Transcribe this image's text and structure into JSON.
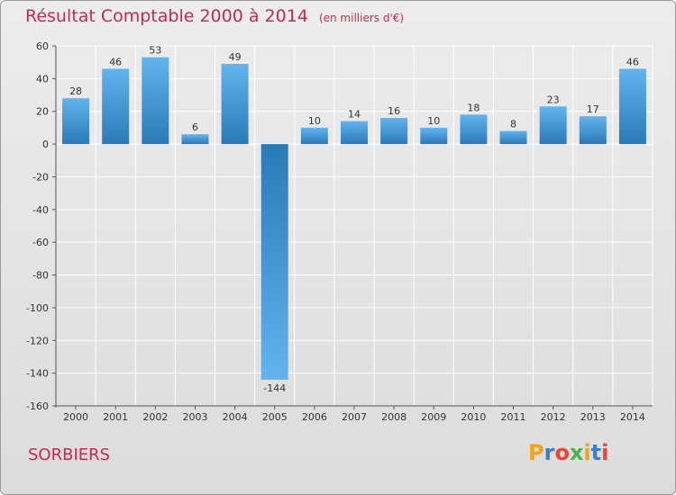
{
  "header": {
    "title": "Résultat Comptable 2000 à 2014",
    "unit": "(en milliers d'€)"
  },
  "footer": {
    "commune": "SORBIERS",
    "logo_letters": [
      "P",
      "r",
      "o",
      "x",
      "i",
      "t",
      "i"
    ],
    "logo_colors": [
      "#f5a21b",
      "#3a7dc9",
      "#e8443b",
      "#4caf50",
      "#f5a21b",
      "#3a7dc9",
      "#e8443b"
    ]
  },
  "colors": {
    "title": "#c42a50",
    "bar_light": "#62b3ee",
    "bar_dark": "#2a7ab8",
    "axis": "#555555",
    "grid": "#ffffff"
  },
  "chart_data": {
    "type": "bar",
    "title": "Résultat Comptable 2000 à 2014",
    "xlabel": "",
    "ylabel": "",
    "categories": [
      "2000",
      "2001",
      "2002",
      "2003",
      "2004",
      "2005",
      "2006",
      "2007",
      "2008",
      "2009",
      "2010",
      "2011",
      "2012",
      "2013",
      "2014"
    ],
    "values": [
      28,
      46,
      53,
      6,
      49,
      -144,
      10,
      14,
      16,
      10,
      18,
      8,
      23,
      17,
      46
    ],
    "value_labels": [
      "28",
      "46",
      "53",
      "6",
      "49",
      "-144",
      "10",
      "14",
      "16",
      "10",
      "18",
      "8",
      "23",
      "17",
      "46"
    ],
    "ylim": [
      -160,
      60
    ],
    "yticks": [
      60,
      40,
      20,
      0,
      -20,
      -40,
      -60,
      -80,
      -100,
      -120,
      -140,
      -160
    ],
    "ytick_labels": [
      "60",
      "40",
      "20",
      "0",
      "-20",
      "-40",
      "-60",
      "-80",
      "-100",
      "-120",
      "-140",
      "-160"
    ],
    "grid": true
  }
}
